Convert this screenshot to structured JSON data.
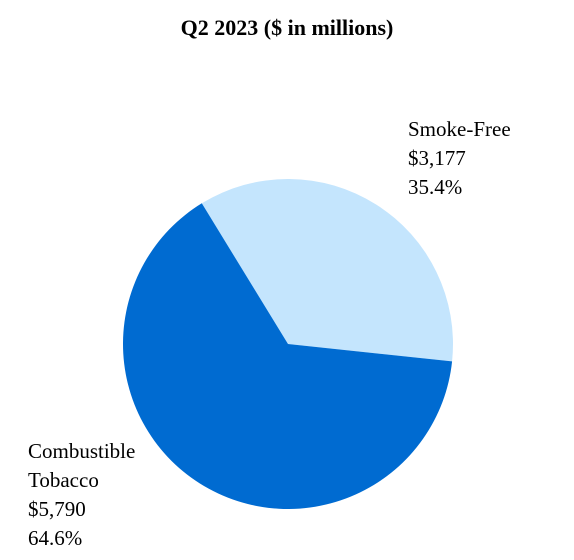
{
  "chart_data": {
    "type": "pie",
    "title": "Q2 2023 ($ in millions)",
    "slices": [
      {
        "name": "Smoke-Free",
        "value": 3177,
        "value_label": "$3,177",
        "percent_label": "35.4%",
        "color": "#c4e5fd"
      },
      {
        "name": "Combustible Tobacco",
        "name_lines": [
          "Combustible",
          "Tobacco"
        ],
        "value": 5790,
        "value_label": "$5,790",
        "percent_label": "64.6%",
        "color": "#006bd1"
      }
    ]
  }
}
